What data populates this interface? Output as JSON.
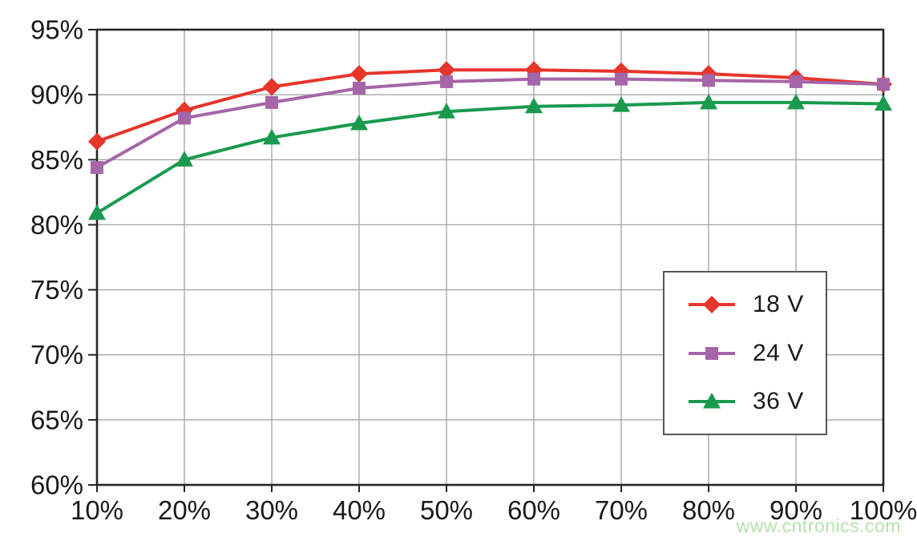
{
  "chart_data": {
    "type": "line",
    "title": "",
    "categories": [
      "10%",
      "20%",
      "30%",
      "40%",
      "50%",
      "60%",
      "70%",
      "80%",
      "90%",
      "100%"
    ],
    "x_numeric": [
      10,
      20,
      30,
      40,
      50,
      60,
      70,
      80,
      90,
      100
    ],
    "y_tick_labels": [
      "95%",
      "90%",
      "85%",
      "80%",
      "75%",
      "70%",
      "65%",
      "60%"
    ],
    "y_tick_values": [
      95,
      90,
      85,
      80,
      75,
      70,
      65,
      60
    ],
    "ylim": [
      60,
      95
    ],
    "xlim": [
      10,
      100
    ],
    "grid": true,
    "legend_position": "middle-right",
    "series": [
      {
        "name": "18 V",
        "marker": "diamond",
        "color": "#e6352b",
        "values": [
          86.4,
          88.8,
          90.6,
          91.6,
          91.9,
          91.9,
          91.8,
          91.6,
          91.3,
          90.8
        ]
      },
      {
        "name": "24 V",
        "marker": "square",
        "color": "#a565a9",
        "values": [
          84.4,
          88.2,
          89.4,
          90.5,
          91.0,
          91.2,
          91.2,
          91.1,
          91.0,
          90.8
        ]
      },
      {
        "name": "36 V",
        "marker": "triangle",
        "color": "#199a4e",
        "values": [
          80.9,
          85.0,
          86.7,
          87.8,
          88.7,
          89.1,
          89.2,
          89.4,
          89.4,
          89.3
        ]
      }
    ]
  },
  "watermark": {
    "text": "www.cntronics.com",
    "color": "#b5e3ab"
  },
  "style_colors": {
    "axis_border": "#262626",
    "gridline": "#a8a8a8",
    "tick": "#262626",
    "label_text": "#1a1a1a",
    "background": "#ffffff",
    "legend_border": "#565656"
  }
}
